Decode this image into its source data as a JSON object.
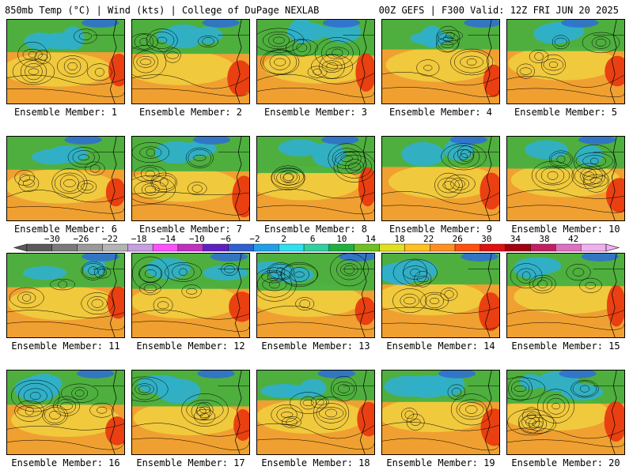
{
  "header": {
    "left": "850mb Temp (°C) | Wind (kts) | College of DuPage NEXLAB",
    "right": "00Z GEFS | F300 Valid: 12Z FRI JUN 20 2025"
  },
  "members": [
    {
      "label": "Ensemble Member: 1"
    },
    {
      "label": "Ensemble Member: 2"
    },
    {
      "label": "Ensemble Member: 3"
    },
    {
      "label": "Ensemble Member: 4"
    },
    {
      "label": "Ensemble Member: 5"
    },
    {
      "label": "Ensemble Member: 6"
    },
    {
      "label": "Ensemble Member: 7"
    },
    {
      "label": "Ensemble Member: 8"
    },
    {
      "label": "Ensemble Member: 9"
    },
    {
      "label": "Ensemble Member: 10"
    },
    {
      "label": "Ensemble Member: 11"
    },
    {
      "label": "Ensemble Member: 12"
    },
    {
      "label": "Ensemble Member: 13"
    },
    {
      "label": "Ensemble Member: 14"
    },
    {
      "label": "Ensemble Member: 15"
    },
    {
      "label": "Ensemble Member: 16"
    },
    {
      "label": "Ensemble Member: 17"
    },
    {
      "label": "Ensemble Member: 18"
    },
    {
      "label": "Ensemble Member: 19"
    },
    {
      "label": "Ensemble Member: 20"
    }
  ],
  "colorbar": {
    "labels": [
      "−30",
      "−26",
      "−22",
      "−18",
      "−14",
      "−10",
      "−6",
      "−2",
      "2",
      "6",
      "10",
      "14",
      "18",
      "22",
      "26",
      "30",
      "34",
      "38",
      "42"
    ],
    "colors": [
      "#5a5a5a",
      "#7a7a7a",
      "#9a9a9a",
      "#b4b4b4",
      "#c8a0e0",
      "#ff50ff",
      "#c030c0",
      "#6020c0",
      "#3060d0",
      "#20a0e8",
      "#30e0f0",
      "#30d0a0",
      "#20b040",
      "#70c020",
      "#e0e020",
      "#ffc020",
      "#ff9020",
      "#ff5010",
      "#e01010",
      "#a00010",
      "#c02060",
      "#e070c0",
      "#f0b0f0"
    ]
  },
  "map_colors": {
    "warm": "#f0a030",
    "hot": "#e83a10",
    "mild": "#f0d040",
    "green": "#3cb040",
    "cool": "#30b0c8",
    "cold": "#3070d0"
  }
}
